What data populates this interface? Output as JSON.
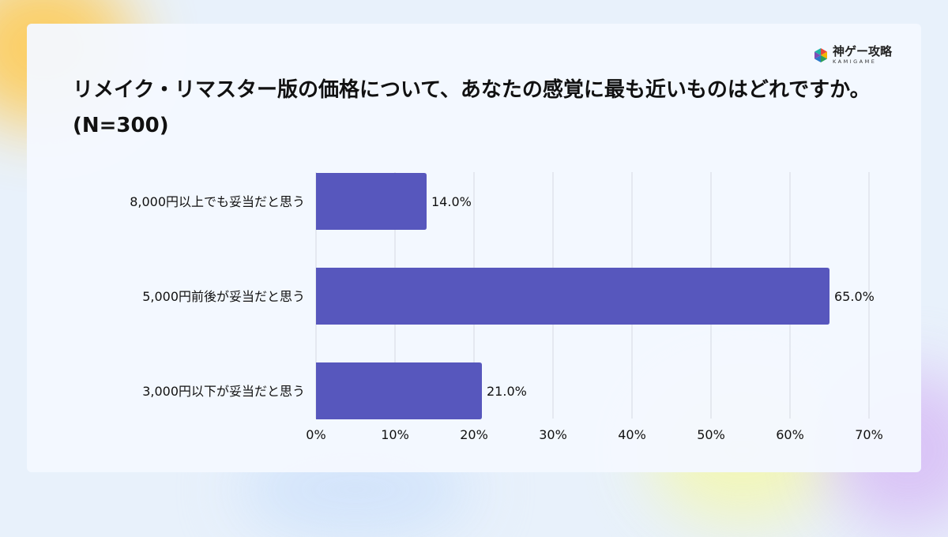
{
  "brand": {
    "name": "神ゲー攻略",
    "sub": "KAMIGAME"
  },
  "title": "リメイク・リマスター版の価格について、あなたの感覚に最も近いものはどれですか。(N=300)",
  "colors": {
    "bar": "#5757bd",
    "grid": "#d4d8e0",
    "text": "#111111"
  },
  "chart_data": {
    "type": "bar",
    "orientation": "horizontal",
    "title": "リメイク・リマスター版の価格について、あなたの感覚に最も近いものはどれですか。(N=300)",
    "categories": [
      "8,000円以上でも妥当だと思う",
      "5,000円前後が妥当だと思う",
      "3,000円以下が妥当だと思う"
    ],
    "values": [
      14.0,
      65.0,
      21.0
    ],
    "value_labels": [
      "14.0%",
      "65.0%",
      "21.0%"
    ],
    "unit": "%",
    "xlim": [
      0,
      70
    ],
    "x_ticks": [
      0,
      10,
      20,
      30,
      40,
      50,
      60,
      70
    ],
    "x_tick_labels": [
      "0%",
      "10%",
      "20%",
      "30%",
      "40%",
      "50%",
      "60%",
      "70%"
    ],
    "grid": true,
    "legend": "none"
  }
}
